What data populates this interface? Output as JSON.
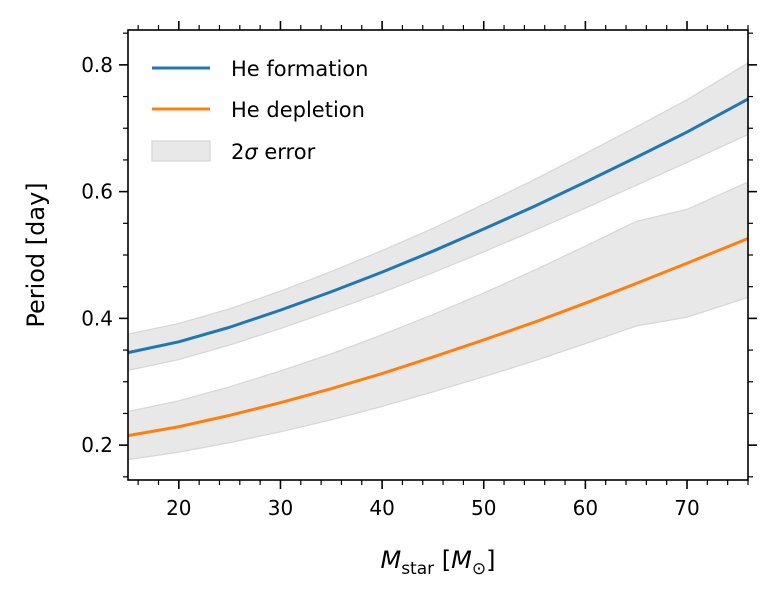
{
  "chart_data": {
    "type": "line",
    "title": "",
    "xlabel": {
      "main": "M",
      "sub": "star",
      "unit_open": "[",
      "unit_main": "M",
      "unit_sub": "⊙",
      "unit_close": "]"
    },
    "ylabel": "Period [day]",
    "xlim": [
      15,
      76
    ],
    "ylim": [
      0.145,
      0.855
    ],
    "x_ticks": [
      20,
      30,
      40,
      50,
      60,
      70
    ],
    "y_ticks": [
      0.2,
      0.4,
      0.6,
      0.8
    ],
    "x_tick_labels": [
      "20",
      "30",
      "40",
      "50",
      "60",
      "70"
    ],
    "y_tick_labels": [
      "0.2",
      "0.4",
      "0.6",
      "0.8"
    ],
    "x_minor_step": 2,
    "y_minor_step": 0.05,
    "grid": false,
    "legend_position": "top-left",
    "x": [
      15,
      20,
      25,
      30,
      35,
      40,
      45,
      50,
      55,
      60,
      65,
      70,
      76
    ],
    "series": [
      {
        "name": "He formation",
        "color": "#1f77b4",
        "values": [
          0.346,
          0.363,
          0.386,
          0.413,
          0.442,
          0.473,
          0.506,
          0.541,
          0.577,
          0.615,
          0.654,
          0.694,
          0.746
        ],
        "band_upper": [
          0.375,
          0.392,
          0.415,
          0.443,
          0.474,
          0.507,
          0.542,
          0.58,
          0.619,
          0.66,
          0.702,
          0.745,
          0.803
        ],
        "band_lower": [
          0.318,
          0.335,
          0.358,
          0.384,
          0.412,
          0.441,
          0.472,
          0.505,
          0.539,
          0.574,
          0.61,
          0.646,
          0.69
        ]
      },
      {
        "name": "He depletion",
        "color": "#ff7f0e",
        "values": [
          0.215,
          0.229,
          0.247,
          0.267,
          0.289,
          0.313,
          0.339,
          0.366,
          0.394,
          0.424,
          0.455,
          0.487,
          0.526
        ],
        "band_upper": [
          0.253,
          0.27,
          0.292,
          0.317,
          0.344,
          0.374,
          0.406,
          0.44,
          0.476,
          0.514,
          0.553,
          0.572,
          0.615
        ],
        "band_lower": [
          0.177,
          0.189,
          0.204,
          0.221,
          0.24,
          0.261,
          0.284,
          0.308,
          0.333,
          0.36,
          0.388,
          0.402,
          0.433
        ]
      }
    ],
    "error_band": {
      "name_prefix": "2",
      "name_symbol": "σ",
      "name_suffix": " error",
      "color": "#e8e8e8",
      "edge_color": "#d6d6d6"
    }
  }
}
